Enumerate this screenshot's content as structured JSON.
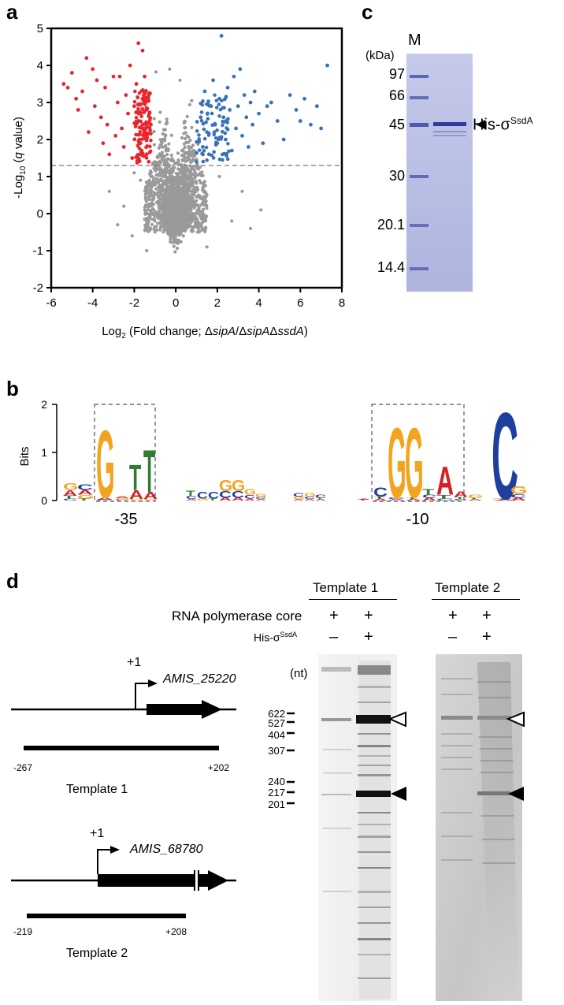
{
  "panels": {
    "a": "a",
    "b": "b",
    "c": "c",
    "d": "d"
  },
  "chart_data": {
    "type": "scatter",
    "xlabel_prefix": "Log",
    "xlabel_sub": "2",
    "xlabel_rest_1": " (Fold change; Δ",
    "xlabel_gene1": "sipA",
    "xlabel_slash": "/Δ",
    "xlabel_gene2": "sipA",
    "xlabel_delta": "Δ",
    "xlabel_gene3": "ssdA",
    "xlabel_close": ")",
    "ylabel_prefix": "-Log",
    "ylabel_sub": "10",
    "ylabel_open": " (",
    "ylabel_q": "q",
    "ylabel_rest": " value)",
    "xlim": [
      -6,
      8
    ],
    "ylim": [
      -2,
      5
    ],
    "xticks": [
      "-6",
      "-4",
      "-2",
      "0",
      "2",
      "4",
      "6",
      "8"
    ],
    "yticks": [
      "-2",
      "-1",
      "0",
      "1",
      "2",
      "3",
      "4",
      "5"
    ],
    "threshold_y": 1.3,
    "colors": {
      "down": "#e8262b",
      "up": "#3a72b8",
      "ns": "#9a9a9a"
    },
    "red_points": [
      [
        -5.4,
        3.5
      ],
      [
        -5.2,
        3.4
      ],
      [
        -5.0,
        3.8
      ],
      [
        -4.8,
        3.1
      ],
      [
        -4.7,
        2.8
      ],
      [
        -4.5,
        3.3
      ],
      [
        -4.3,
        4.2
      ],
      [
        -4.2,
        2.2
      ],
      [
        -4.0,
        3.9
      ],
      [
        -3.9,
        2.9
      ],
      [
        -3.8,
        3.6
      ],
      [
        -3.6,
        2.6
      ],
      [
        -3.5,
        1.9
      ],
      [
        -3.4,
        3.4
      ],
      [
        -3.3,
        2.4
      ],
      [
        -3.2,
        1.6
      ],
      [
        -3.0,
        3.7
      ],
      [
        -2.9,
        2.1
      ],
      [
        -2.8,
        3.0
      ],
      [
        -2.7,
        3.7
      ],
      [
        -2.6,
        2.3
      ],
      [
        -2.5,
        1.8
      ],
      [
        -2.4,
        3.2
      ],
      [
        -2.3,
        2.7
      ],
      [
        -2.2,
        4.0
      ],
      [
        -2.1,
        1.5
      ],
      [
        -2.0,
        2.9
      ],
      [
        -1.9,
        3.5
      ],
      [
        -1.8,
        4.6
      ],
      [
        -1.8,
        2.5
      ],
      [
        -1.7,
        1.9
      ],
      [
        -1.6,
        3.1
      ],
      [
        -1.6,
        4.4
      ],
      [
        -1.5,
        2.2
      ],
      [
        -1.5,
        3.7
      ],
      [
        -1.4,
        1.6
      ],
      [
        -1.4,
        2.8
      ],
      [
        -1.3,
        3.2
      ],
      [
        -1.3,
        1.4
      ],
      [
        -1.2,
        2.4
      ]
    ],
    "blue_points": [
      [
        1.0,
        1.4
      ],
      [
        1.2,
        2.6
      ],
      [
        1.3,
        1.8
      ],
      [
        1.4,
        3.3
      ],
      [
        1.5,
        2.2
      ],
      [
        1.6,
        1.6
      ],
      [
        1.7,
        2.9
      ],
      [
        1.8,
        3.6
      ],
      [
        1.9,
        2.4
      ],
      [
        2.0,
        1.9
      ],
      [
        2.1,
        3.1
      ],
      [
        2.2,
        4.8
      ],
      [
        2.3,
        2.6
      ],
      [
        2.4,
        2.0
      ],
      [
        2.5,
        3.4
      ],
      [
        2.6,
        2.8
      ],
      [
        2.7,
        1.7
      ],
      [
        2.8,
        3.7
      ],
      [
        2.9,
        2.3
      ],
      [
        3.0,
        2.9
      ],
      [
        3.1,
        3.9
      ],
      [
        3.2,
        2.1
      ],
      [
        3.3,
        3.2
      ],
      [
        3.4,
        2.6
      ],
      [
        3.5,
        1.8
      ],
      [
        3.6,
        3.0
      ],
      [
        3.7,
        2.4
      ],
      [
        3.8,
        3.3
      ],
      [
        4.0,
        2.7
      ],
      [
        4.2,
        1.9
      ],
      [
        4.4,
        2.9
      ],
      [
        4.6,
        3.0
      ],
      [
        4.9,
        2.5
      ],
      [
        5.2,
        2.0
      ],
      [
        5.5,
        3.2
      ],
      [
        5.8,
        2.8
      ],
      [
        6.0,
        2.5
      ],
      [
        6.2,
        3.1
      ],
      [
        6.5,
        2.4
      ],
      [
        6.8,
        2.9
      ],
      [
        7.0,
        2.3
      ],
      [
        7.3,
        4.0
      ]
    ],
    "grey_extra": [
      [
        -3.2,
        0.6
      ],
      [
        -2.5,
        0.2
      ],
      [
        -2.8,
        -0.3
      ],
      [
        -2.1,
        -0.6
      ],
      [
        -1.7,
        0.9
      ],
      [
        3.2,
        0.6
      ],
      [
        2.7,
        -0.2
      ],
      [
        3.6,
        -0.4
      ],
      [
        4.1,
        0.1
      ],
      [
        -2.0,
        1.1
      ],
      [
        2.1,
        1.0
      ],
      [
        -1.4,
        -1.0
      ],
      [
        1.5,
        -0.9
      ],
      [
        -0.3,
        3.9
      ],
      [
        0.2,
        3.6
      ]
    ]
  },
  "gel_c": {
    "lane_label": "M",
    "unit": "(kDa)",
    "markers": [
      "97",
      "66",
      "45",
      "30",
      "20.1",
      "14.4"
    ],
    "band_label_prefix": "His-σ",
    "band_label_sup": "SsdA",
    "colors": {
      "gel": "#b9bee4",
      "band": "#3a48a8"
    }
  },
  "logo_b": {
    "ylabel": "Bits",
    "yticks": [
      "2",
      "1",
      "0"
    ],
    "pos1": "-35",
    "pos2": "-10",
    "colors": {
      "A": "#d62027",
      "C": "#1f3f9e",
      "G": "#f3a41f",
      "T": "#2e7d32"
    }
  },
  "panel_d": {
    "template1_header": "Template 1",
    "template2_header": "Template 2",
    "row1_label": "RNA polymerase core",
    "row2_label_prefix": "His-σ",
    "row2_label_sup": "SsdA",
    "signs": {
      "plus": "+",
      "minus": "–"
    },
    "unit": "(nt)",
    "markers": [
      "622",
      "527",
      "404",
      "307",
      "240",
      "217",
      "201"
    ],
    "gene1": "AMIS_25220",
    "gene2": "AMIS_68780",
    "tss": "+1",
    "t1_start": "-267",
    "t1_end": "+202",
    "t2_start": "-219",
    "t2_end": "+208",
    "t1_label": "Template 1",
    "t2_label": "Template 2"
  }
}
